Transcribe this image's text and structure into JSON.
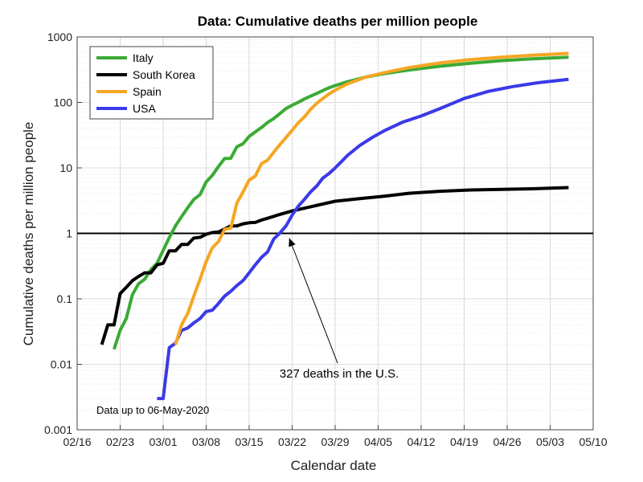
{
  "chart_data": {
    "type": "line",
    "title": "Data: Cumulative deaths per million people",
    "xlabel": "Calendar date",
    "ylabel": "Cumulative deaths per million people",
    "yscale": "log",
    "ylim": [
      0.001,
      1000
    ],
    "xlim": [
      "2020-02-16",
      "2020-05-10"
    ],
    "xtick_labels": [
      "02/16",
      "02/23",
      "03/01",
      "03/08",
      "03/15",
      "03/22",
      "03/29",
      "04/05",
      "04/12",
      "04/19",
      "04/26",
      "05/03",
      "05/10"
    ],
    "ytick_labels": [
      "0.001",
      "0.01",
      "0.1",
      "1",
      "10",
      "100",
      "1000"
    ],
    "grid": true,
    "legend_position": "top-left",
    "reference_line": {
      "y": 1
    },
    "annotation": {
      "text": "327 deaths in the U.S.",
      "points_to": {
        "date": "2020-03-21",
        "y": 1
      }
    },
    "note": "Data up to 06-May-2020",
    "colors": {
      "Italy": "#3aaa35",
      "South Korea": "#000000",
      "Spain": "#f5a623",
      "USA": "#3a3ae8"
    },
    "series": [
      {
        "name": "Italy",
        "points": [
          [
            "2020-02-22",
            0.017
          ],
          [
            "2020-02-23",
            0.033
          ],
          [
            "2020-02-24",
            0.05
          ],
          [
            "2020-02-25",
            0.116
          ],
          [
            "2020-02-26",
            0.17
          ],
          [
            "2020-02-27",
            0.2
          ],
          [
            "2020-02-28",
            0.28
          ],
          [
            "2020-02-29",
            0.35
          ],
          [
            "2020-03-01",
            0.55
          ],
          [
            "2020-03-02",
            0.86
          ],
          [
            "2020-03-03",
            1.3
          ],
          [
            "2020-03-04",
            1.8
          ],
          [
            "2020-03-05",
            2.47
          ],
          [
            "2020-03-06",
            3.3
          ],
          [
            "2020-03-07",
            3.9
          ],
          [
            "2020-03-08",
            6.1
          ],
          [
            "2020-03-09",
            7.7
          ],
          [
            "2020-03-10",
            10.5
          ],
          [
            "2020-03-11",
            13.9
          ],
          [
            "2020-03-12",
            14
          ],
          [
            "2020-03-13",
            21
          ],
          [
            "2020-03-14",
            23.4
          ],
          [
            "2020-03-15",
            30.3
          ],
          [
            "2020-03-16",
            35.4
          ],
          [
            "2020-03-17",
            41.3
          ],
          [
            "2020-03-18",
            49.4
          ],
          [
            "2020-03-19",
            56.6
          ],
          [
            "2020-03-20",
            67.6
          ],
          [
            "2020-03-21",
            80.6
          ],
          [
            "2020-03-22",
            90.5
          ],
          [
            "2020-03-23",
            100.5
          ],
          [
            "2020-03-24",
            113
          ],
          [
            "2020-03-25",
            124.6
          ],
          [
            "2020-03-26",
            137.4
          ],
          [
            "2020-03-27",
            152
          ],
          [
            "2020-03-28",
            167.6
          ],
          [
            "2020-03-29",
            180.8
          ],
          [
            "2020-03-30",
            193.8
          ],
          [
            "2020-03-31",
            207.5
          ],
          [
            "2020-04-03",
            244
          ],
          [
            "2020-04-06",
            275
          ],
          [
            "2020-04-10",
            312
          ],
          [
            "2020-04-15",
            357
          ],
          [
            "2020-04-20",
            397
          ],
          [
            "2020-04-25",
            435
          ],
          [
            "2020-04-30",
            463
          ],
          [
            "2020-05-06",
            490
          ]
        ]
      },
      {
        "name": "South Korea",
        "points": [
          [
            "2020-02-20",
            0.02
          ],
          [
            "2020-02-21",
            0.04
          ],
          [
            "2020-02-22",
            0.04
          ],
          [
            "2020-02-23",
            0.12
          ],
          [
            "2020-02-24",
            0.15
          ],
          [
            "2020-02-25",
            0.19
          ],
          [
            "2020-02-26",
            0.22
          ],
          [
            "2020-02-27",
            0.25
          ],
          [
            "2020-02-28",
            0.25
          ],
          [
            "2020-02-29",
            0.33
          ],
          [
            "2020-03-01",
            0.35
          ],
          [
            "2020-03-02",
            0.54
          ],
          [
            "2020-03-03",
            0.54
          ],
          [
            "2020-03-04",
            0.68
          ],
          [
            "2020-03-05",
            0.68
          ],
          [
            "2020-03-06",
            0.85
          ],
          [
            "2020-03-07",
            0.87
          ],
          [
            "2020-03-08",
            0.97
          ],
          [
            "2020-03-09",
            1.03
          ],
          [
            "2020-03-10",
            1.05
          ],
          [
            "2020-03-11",
            1.16
          ],
          [
            "2020-03-12",
            1.3
          ],
          [
            "2020-03-13",
            1.3
          ],
          [
            "2020-03-14",
            1.4
          ],
          [
            "2020-03-15",
            1.45
          ],
          [
            "2020-03-16",
            1.47
          ],
          [
            "2020-03-17",
            1.6
          ],
          [
            "2020-03-18",
            1.7
          ],
          [
            "2020-03-19",
            1.82
          ],
          [
            "2020-03-20",
            1.95
          ],
          [
            "2020-03-22",
            2.2
          ],
          [
            "2020-03-25",
            2.55
          ],
          [
            "2020-03-29",
            3.1
          ],
          [
            "2020-04-02",
            3.4
          ],
          [
            "2020-04-06",
            3.7
          ],
          [
            "2020-04-10",
            4.1
          ],
          [
            "2020-04-15",
            4.4
          ],
          [
            "2020-04-20",
            4.6
          ],
          [
            "2020-04-25",
            4.7
          ],
          [
            "2020-04-30",
            4.8
          ],
          [
            "2020-05-06",
            5.0
          ]
        ]
      },
      {
        "name": "Spain",
        "points": [
          [
            "2020-03-03",
            0.02
          ],
          [
            "2020-03-04",
            0.04
          ],
          [
            "2020-03-05",
            0.06
          ],
          [
            "2020-03-06",
            0.11
          ],
          [
            "2020-03-07",
            0.2
          ],
          [
            "2020-03-08",
            0.37
          ],
          [
            "2020-03-09",
            0.6
          ],
          [
            "2020-03-10",
            0.75
          ],
          [
            "2020-03-11",
            1.15
          ],
          [
            "2020-03-12",
            1.2
          ],
          [
            "2020-03-13",
            2.9
          ],
          [
            "2020-03-14",
            4.3
          ],
          [
            "2020-03-15",
            6.5
          ],
          [
            "2020-03-16",
            7.5
          ],
          [
            "2020-03-17",
            11.6
          ],
          [
            "2020-03-18",
            13.1
          ],
          [
            "2020-03-19",
            17.4
          ],
          [
            "2020-03-20",
            22.6
          ],
          [
            "2020-03-21",
            29.2
          ],
          [
            "2020-03-22",
            37.5
          ],
          [
            "2020-03-23",
            48.8
          ],
          [
            "2020-03-24",
            60.5
          ],
          [
            "2020-03-25",
            78.3
          ],
          [
            "2020-03-26",
            97
          ],
          [
            "2020-03-27",
            115
          ],
          [
            "2020-03-28",
            135
          ],
          [
            "2020-03-29",
            153
          ],
          [
            "2020-03-30",
            172
          ],
          [
            "2020-03-31",
            192
          ],
          [
            "2020-04-03",
            244
          ],
          [
            "2020-04-06",
            285
          ],
          [
            "2020-04-10",
            340
          ],
          [
            "2020-04-15",
            400
          ],
          [
            "2020-04-20",
            450
          ],
          [
            "2020-04-25",
            490
          ],
          [
            "2020-04-30",
            525
          ],
          [
            "2020-05-06",
            560
          ]
        ]
      },
      {
        "name": "USA",
        "points": [
          [
            "2020-02-29",
            0.003
          ],
          [
            "2020-03-01",
            0.003
          ],
          [
            "2020-03-02",
            0.018
          ],
          [
            "2020-03-03",
            0.021
          ],
          [
            "2020-03-04",
            0.033
          ],
          [
            "2020-03-05",
            0.036
          ],
          [
            "2020-03-06",
            0.043
          ],
          [
            "2020-03-07",
            0.05
          ],
          [
            "2020-03-08",
            0.064
          ],
          [
            "2020-03-09",
            0.067
          ],
          [
            "2020-03-10",
            0.085
          ],
          [
            "2020-03-11",
            0.11
          ],
          [
            "2020-03-12",
            0.13
          ],
          [
            "2020-03-13",
            0.16
          ],
          [
            "2020-03-14",
            0.19
          ],
          [
            "2020-03-15",
            0.25
          ],
          [
            "2020-03-16",
            0.33
          ],
          [
            "2020-03-17",
            0.43
          ],
          [
            "2020-03-18",
            0.52
          ],
          [
            "2020-03-19",
            0.82
          ],
          [
            "2020-03-20",
            1.01
          ],
          [
            "2020-03-21",
            1.3
          ],
          [
            "2020-03-22",
            1.9
          ],
          [
            "2020-03-23",
            2.6
          ],
          [
            "2020-03-24",
            3.3
          ],
          [
            "2020-03-25",
            4.3
          ],
          [
            "2020-03-26",
            5.3
          ],
          [
            "2020-03-27",
            7.0
          ],
          [
            "2020-03-28",
            8.2
          ],
          [
            "2020-03-29",
            10
          ],
          [
            "2020-03-30",
            12.4
          ],
          [
            "2020-03-31",
            15.5
          ],
          [
            "2020-04-02",
            22
          ],
          [
            "2020-04-04",
            29
          ],
          [
            "2020-04-06",
            37
          ],
          [
            "2020-04-09",
            50
          ],
          [
            "2020-04-12",
            62
          ],
          [
            "2020-04-15",
            80
          ],
          [
            "2020-04-19",
            115
          ],
          [
            "2020-04-23",
            148
          ],
          [
            "2020-04-27",
            175
          ],
          [
            "2020-05-01",
            200
          ],
          [
            "2020-05-06",
            225
          ]
        ]
      }
    ]
  }
}
